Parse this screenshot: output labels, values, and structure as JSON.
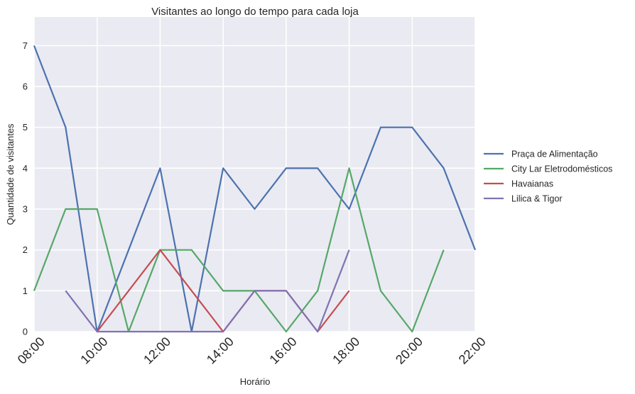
{
  "chart_data": {
    "type": "line",
    "title": "Visitantes ao longo do tempo para cada loja",
    "xlabel": "Horário",
    "ylabel": "Quantidade de visitantes",
    "x": [
      "08:00",
      "09:00",
      "10:00",
      "11:00",
      "12:00",
      "13:00",
      "14:00",
      "15:00",
      "16:00",
      "17:00",
      "18:00",
      "19:00",
      "20:00",
      "21:00",
      "22:00"
    ],
    "xticks": [
      "08:00",
      "10:00",
      "12:00",
      "14:00",
      "16:00",
      "18:00",
      "20:00",
      "22:00"
    ],
    "yticks": [
      0,
      1,
      2,
      3,
      4,
      5,
      6,
      7
    ],
    "ylim": [
      0,
      7.7
    ],
    "grid": true,
    "legend_position": "right",
    "series": [
      {
        "name": "Praça de Alimentação",
        "color": "#4c72b0",
        "values": [
          7,
          5,
          0,
          2,
          4,
          0,
          4,
          3,
          4,
          4,
          3,
          5,
          5,
          4,
          2
        ]
      },
      {
        "name": "City Lar Eletrodomésticos",
        "color": "#55a868",
        "values": [
          1,
          3,
          3,
          0,
          2,
          2,
          1,
          1,
          0,
          1,
          4,
          1,
          0,
          2,
          null
        ]
      },
      {
        "name": "Havaianas",
        "color": "#c44e52",
        "values": [
          null,
          null,
          0,
          1,
          2,
          1,
          0,
          1,
          1,
          0,
          1,
          null,
          null,
          null,
          null
        ]
      },
      {
        "name": "Lilica & Tigor",
        "color": "#8172b2",
        "values": [
          null,
          1,
          0,
          0,
          0,
          0,
          0,
          1,
          1,
          0,
          2,
          null,
          null,
          null,
          null
        ]
      }
    ]
  }
}
